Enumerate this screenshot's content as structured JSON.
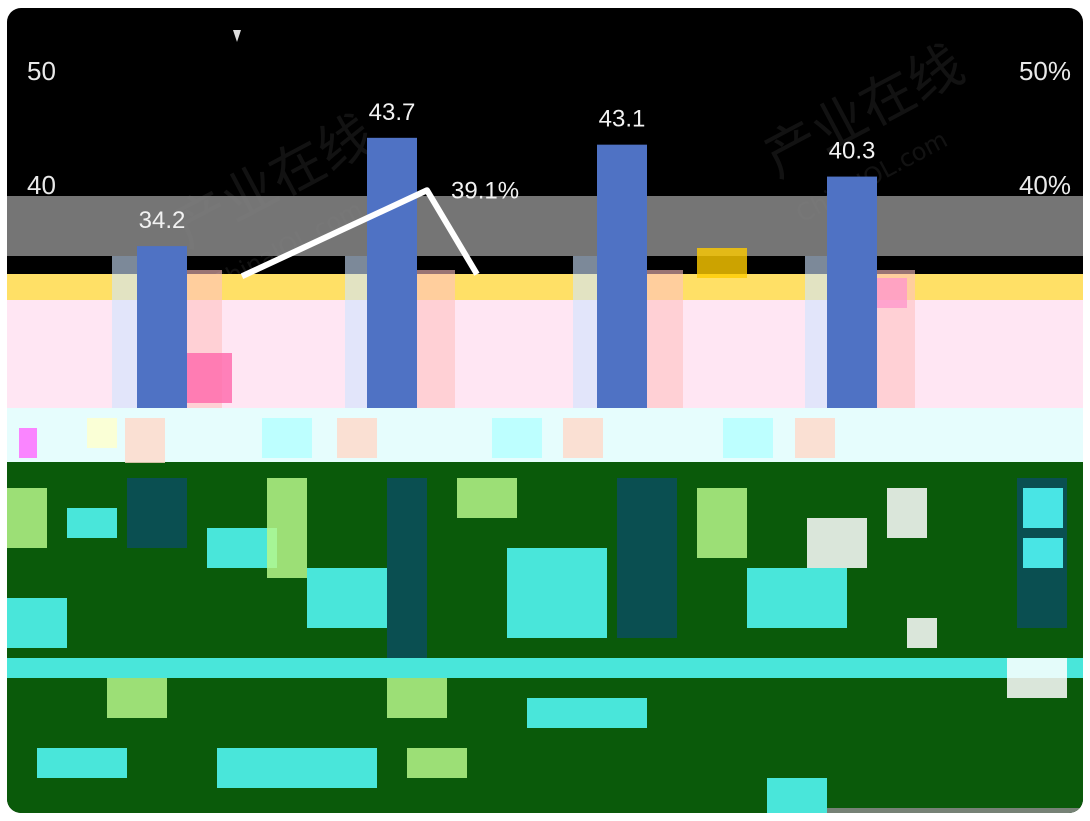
{
  "chart_data": {
    "type": "bar",
    "title": "",
    "xlabel": "",
    "ylabel": "",
    "ylim": [
      0,
      50
    ],
    "y2lim": [
      0,
      50
    ],
    "y_ticks": [
      "50",
      "40"
    ],
    "y2_ticks": [
      "50%",
      "40%"
    ],
    "watermark": [
      "产业在线",
      "ChinaIOL.com"
    ],
    "series": [
      {
        "kind": "bar",
        "color": "#4f72c4",
        "values": [
          34.2,
          43.7,
          43.1,
          40.3
        ]
      },
      {
        "kind": "bar",
        "color": "#ed7d31",
        "values": [
          null,
          null,
          null,
          null
        ]
      },
      {
        "kind": "line",
        "color": "#ffffff",
        "values": [
          null,
          39.1,
          null,
          null
        ],
        "labels": [
          "",
          "39.1%",
          "",
          ""
        ]
      }
    ]
  },
  "colors": {
    "background": "#000000",
    "band_gray": "#8a8a8a",
    "band_yellow": "#ffe066",
    "band_pink": "#ffe6f3",
    "band_cyan": "#e6fdfd",
    "band_green": "#0a5a0a",
    "glitch_cyan": "#55ffff",
    "glitch_lime": "#b6f78a"
  }
}
